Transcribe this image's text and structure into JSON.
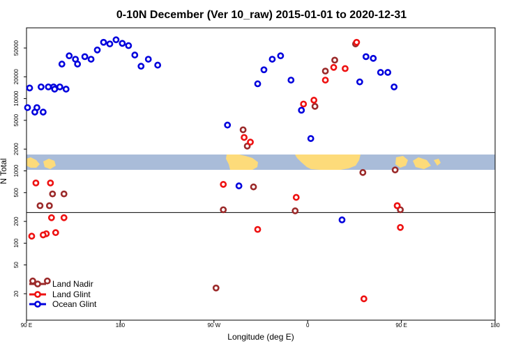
{
  "chart_data": {
    "type": "scatter",
    "title": "0-10N December (Ver 10_raw)   2015-01-01 to 2020-12-31",
    "xlabel": "Longitude (deg E)",
    "ylabel": "N Total",
    "y_scale": "log",
    "x_ticks": [
      {
        "label": "90 E"
      },
      {
        "label": "180"
      },
      {
        "label": "90 W"
      },
      {
        "label": "0"
      },
      {
        "label": "90 E"
      },
      {
        "label": "180"
      }
    ],
    "y_ticks": [
      "20",
      "50",
      "100",
      "200",
      "500",
      "1000",
      "2000",
      "5000",
      "10000",
      "20000",
      "50000"
    ],
    "y_tick_values": [
      20,
      50,
      100,
      200,
      500,
      1000,
      2000,
      5000,
      10000,
      20000,
      50000
    ],
    "reference_line_y": 265,
    "legend_position": "bottom-left",
    "series": [
      {
        "name": "Land Nadir",
        "color": "#9b2a2a",
        "points": [
          [
            96,
            30
          ],
          [
            103,
            330
          ],
          [
            115,
            480
          ],
          [
            -88,
            24
          ],
          [
            -81,
            290
          ],
          [
            -62,
            3700
          ],
          [
            -58,
            2200
          ],
          [
            -52,
            600
          ],
          [
            -12,
            280
          ],
          [
            7,
            7800
          ],
          [
            17,
            24000
          ],
          [
            26,
            34000
          ],
          [
            46,
            57000
          ],
          [
            53,
            950
          ],
          [
            84,
            1030
          ],
          [
            86,
            330
          ],
          [
            89,
            290
          ],
          [
            110,
            30
          ],
          [
            112,
            330
          ],
          [
            126,
            480
          ]
        ]
      },
      {
        "name": "Land Glint",
        "color": "#ee1111",
        "points": [
          [
            95,
            125
          ],
          [
            99,
            680
          ],
          [
            109,
            135
          ],
          [
            114,
            225
          ],
          [
            -81,
            650
          ],
          [
            -61,
            2900
          ],
          [
            -55,
            2500
          ],
          [
            -48,
            155
          ],
          [
            -11,
            430
          ],
          [
            -4,
            8400
          ],
          [
            6,
            9500
          ],
          [
            17,
            18000
          ],
          [
            25,
            27000
          ],
          [
            36,
            26000
          ],
          [
            47,
            60000
          ],
          [
            54,
            17
          ],
          [
            86,
            330
          ],
          [
            89,
            165
          ],
          [
            106,
            130
          ],
          [
            113,
            680
          ],
          [
            118,
            140
          ],
          [
            126,
            225
          ]
        ]
      },
      {
        "name": "Ocean Glint",
        "color": "#0000dd",
        "points": [
          [
            93,
            14000
          ],
          [
            100,
            7500
          ],
          [
            106,
            6500
          ],
          [
            116,
            14500
          ],
          [
            122,
            14500
          ],
          [
            128,
            13500
          ],
          [
            139,
            30000
          ],
          [
            146,
            38000
          ],
          [
            152,
            35000
          ],
          [
            158,
            47000
          ],
          [
            164,
            60000
          ],
          [
            170,
            57000
          ],
          [
            176,
            65000
          ],
          [
            182,
            58000
          ],
          [
            188,
            54000
          ],
          [
            194,
            40000
          ],
          [
            -160,
            28000
          ],
          [
            -153,
            35000
          ],
          [
            -144,
            29000
          ],
          [
            -77,
            4300
          ],
          [
            -66,
            620
          ],
          [
            -48,
            16000
          ],
          [
            -42,
            25000
          ],
          [
            -34,
            35000
          ],
          [
            -26,
            39000
          ],
          [
            -16,
            18000
          ],
          [
            -6,
            6900
          ],
          [
            3,
            2800
          ],
          [
            33,
            210
          ],
          [
            50,
            17000
          ],
          [
            56,
            38000
          ],
          [
            63,
            36000
          ],
          [
            70,
            23000
          ],
          [
            77,
            23000
          ],
          [
            83,
            14500
          ],
          [
            91,
            7500
          ],
          [
            98,
            6500
          ],
          [
            104,
            14500
          ],
          [
            111,
            14500
          ],
          [
            117,
            13500
          ],
          [
            124,
            30000
          ],
          [
            131,
            39000
          ],
          [
            137,
            35000
          ]
        ]
      }
    ]
  }
}
